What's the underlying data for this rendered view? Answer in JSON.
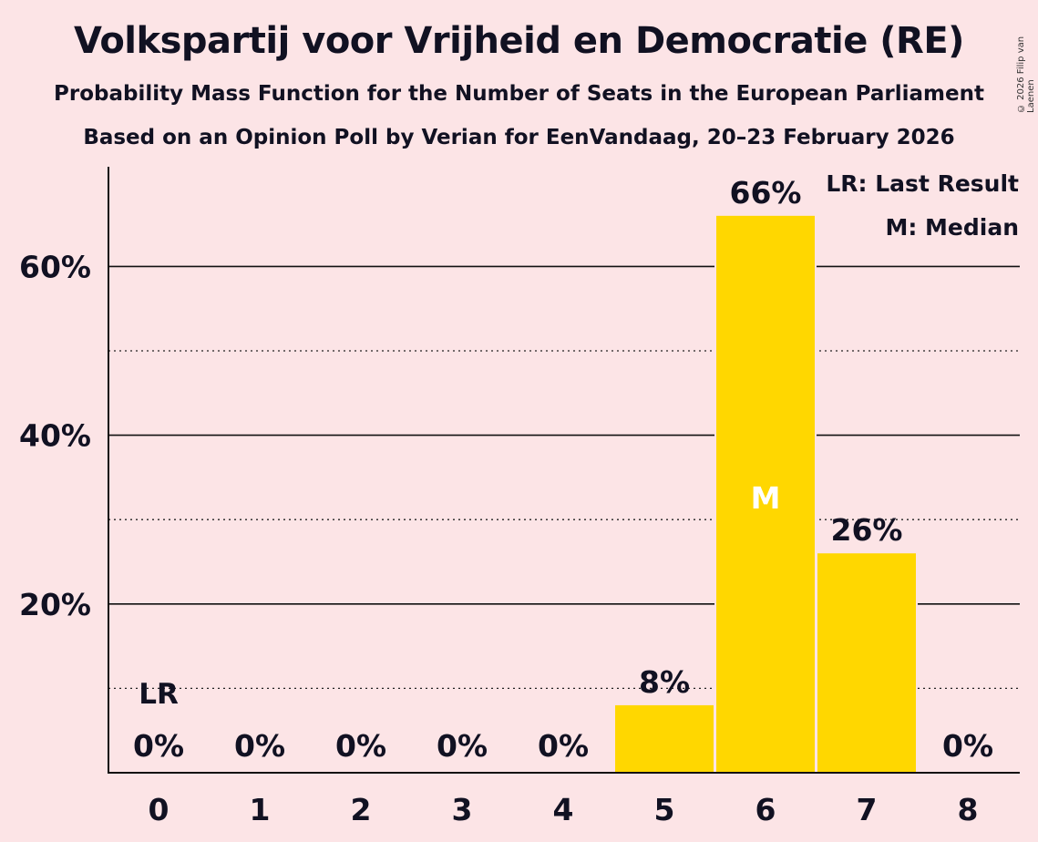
{
  "chart_data": {
    "type": "bar",
    "title": "Volkspartij voor Vrijheid en Democratie (RE)",
    "subtitle": "Probability Mass Function for the Number of Seats in the European Parliament",
    "source": "Based on an Opinion Poll by Verian for EenVandaag, 20–23 February 2026",
    "copyright": "© 2026 Filip van Laenen",
    "categories": [
      "0",
      "1",
      "2",
      "3",
      "4",
      "5",
      "6",
      "7",
      "8"
    ],
    "values": [
      0,
      0,
      0,
      0,
      0,
      8,
      66,
      26,
      0
    ],
    "value_labels": [
      "0%",
      "0%",
      "0%",
      "0%",
      "0%",
      "8%",
      "66%",
      "26%",
      "0%"
    ],
    "ylim": [
      0,
      72
    ],
    "y_ticks": [
      20,
      40,
      60
    ],
    "y_tick_labels": [
      "20%",
      "40%",
      "60%"
    ],
    "y_minor_ticks": [
      10,
      30,
      50
    ],
    "last_result_seat": 0,
    "last_result_label": "LR",
    "median_seat": 6,
    "median_label": "M",
    "legend": [
      "LR: Last Result",
      "M: Median"
    ],
    "legend_position": "top-right",
    "bar_color": "#FFD700",
    "background_color": "#FCE4E6"
  }
}
